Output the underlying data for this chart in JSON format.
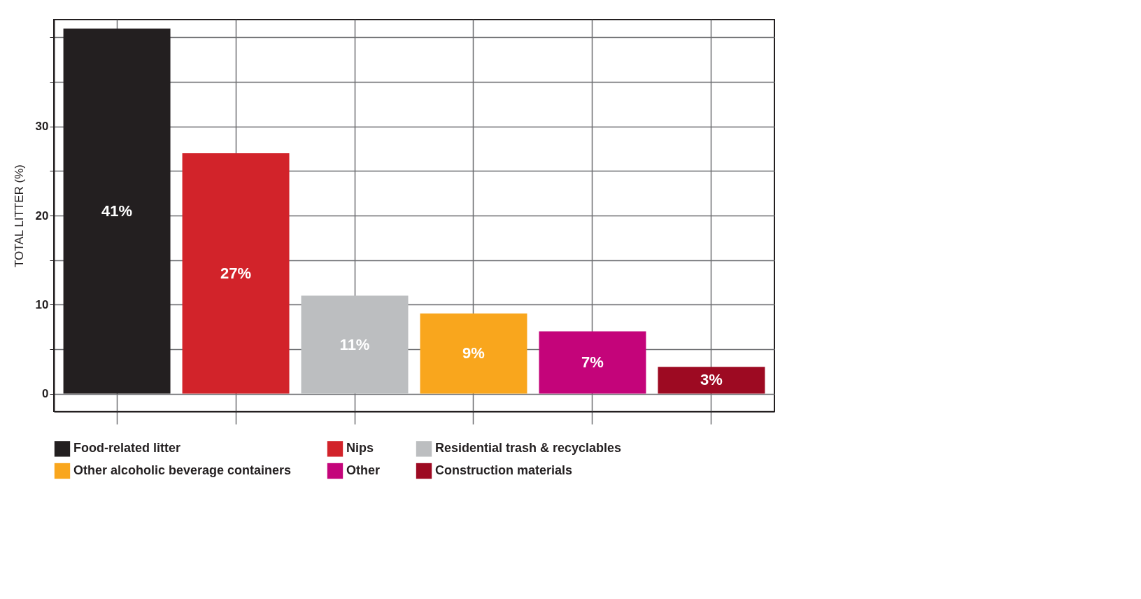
{
  "chart_data": {
    "type": "bar",
    "ylabel": "TOTAL LITTER (%)",
    "categories": [
      null,
      null,
      null,
      null,
      null,
      null
    ],
    "series": [
      {
        "name": "Food-related litter",
        "color": "#231f20",
        "values": [
          41,
          null,
          null,
          null,
          null,
          null
        ],
        "value_labels": [
          "41%",
          null,
          null,
          null,
          null,
          null
        ]
      },
      {
        "name": "Nips",
        "color": "#d2232a",
        "values": [
          null,
          27,
          null,
          null,
          null,
          null
        ],
        "value_labels": [
          null,
          "27%",
          null,
          null,
          null,
          null
        ]
      },
      {
        "name": "Residential trash & recyclables",
        "color": "#bcbec0",
        "values": [
          null,
          null,
          11,
          null,
          null,
          null
        ],
        "value_labels": [
          null,
          null,
          "11%",
          null,
          null,
          null
        ]
      },
      {
        "name": "Other alcoholic beverage containers",
        "color": "#f9a61d",
        "values": [
          null,
          null,
          null,
          9,
          null,
          null
        ],
        "value_labels": [
          null,
          null,
          null,
          "9%",
          null,
          null
        ]
      },
      {
        "name": "Other",
        "color": "#c4047a",
        "values": [
          null,
          null,
          null,
          null,
          7,
          null
        ],
        "value_labels": [
          null,
          null,
          null,
          null,
          "7%",
          null
        ]
      },
      {
        "name": "Construction materials",
        "color": "#9d0a22",
        "values": [
          null,
          null,
          null,
          null,
          null,
          3
        ],
        "value_labels": [
          null,
          null,
          null,
          null,
          null,
          "3%"
        ]
      }
    ],
    "ylim": [
      -2,
      42
    ],
    "yticks": [
      0,
      {
        "value": 5,
        "label": null
      },
      10,
      {
        "value": 15,
        "label": null
      },
      20,
      {
        "value": 25,
        "label": null
      },
      30,
      {
        "value": 35,
        "label": null
      },
      {
        "value": 40,
        "label": null
      }
    ],
    "grid": true,
    "legend": "bottom",
    "tick_labels": "y"
  }
}
